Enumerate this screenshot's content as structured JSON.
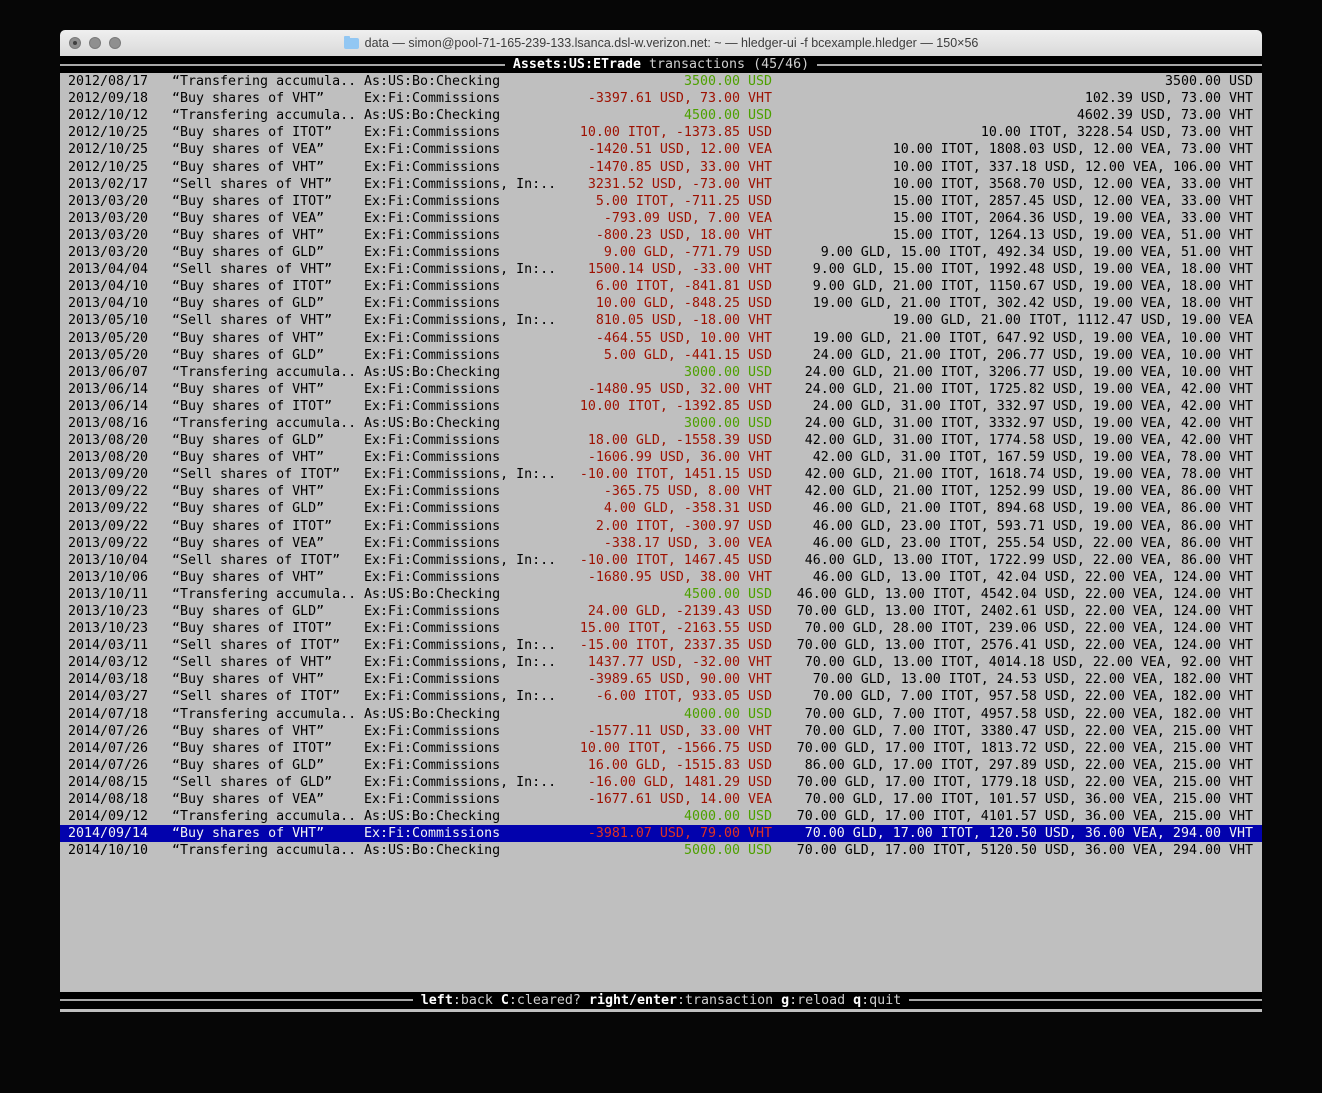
{
  "colors": {
    "terminal_bg": "#bfbfbf",
    "selection_bg": "#0202ad",
    "change_negative": "#9d1000",
    "change_positive": "#4da000",
    "selected_negative": "#e03323",
    "bar_bg": "#000000"
  },
  "window": {
    "title": "data — simon@pool-71-165-239-133.lsanca.dsl-w.verizon.net: ~ — hledger-ui -f bcexample.hledger — 150×56"
  },
  "header": {
    "account": "Assets:US:ETrade",
    "rest": "transactions (45/46)"
  },
  "footer": {
    "keys": [
      {
        "key": "left",
        "desc": ":back"
      },
      {
        "key": "C",
        "desc": ":cleared?"
      },
      {
        "key": "right/enter",
        "desc": ":transaction"
      },
      {
        "key": "g",
        "desc": ":reload"
      },
      {
        "key": "q",
        "desc": ":quit"
      }
    ]
  },
  "rows": [
    {
      "date": "2012/08/17",
      "desc": "“Transfering accumula..",
      "acct": "As:US:Bo:Checking",
      "chg": "3500.00 USD",
      "kind": "green",
      "bal": "3500.00 USD",
      "sel": false
    },
    {
      "date": "2012/09/18",
      "desc": "“Buy shares of VHT”",
      "acct": "Ex:Fi:Commissions",
      "chg": "-3397.61 USD, 73.00 VHT",
      "kind": "red",
      "bal": "102.39 USD, 73.00 VHT",
      "sel": false
    },
    {
      "date": "2012/10/12",
      "desc": "“Transfering accumula..",
      "acct": "As:US:Bo:Checking",
      "chg": "4500.00 USD",
      "kind": "green",
      "bal": "4602.39 USD, 73.00 VHT",
      "sel": false
    },
    {
      "date": "2012/10/25",
      "desc": "“Buy shares of ITOT”",
      "acct": "Ex:Fi:Commissions",
      "chg": "10.00 ITOT, -1373.85 USD",
      "kind": "red",
      "bal": "10.00 ITOT, 3228.54 USD, 73.00 VHT",
      "sel": false
    },
    {
      "date": "2012/10/25",
      "desc": "“Buy shares of VEA”",
      "acct": "Ex:Fi:Commissions",
      "chg": "-1420.51 USD, 12.00 VEA",
      "kind": "red",
      "bal": "10.00 ITOT, 1808.03 USD, 12.00 VEA, 73.00 VHT",
      "sel": false
    },
    {
      "date": "2012/10/25",
      "desc": "“Buy shares of VHT”",
      "acct": "Ex:Fi:Commissions",
      "chg": "-1470.85 USD, 33.00 VHT",
      "kind": "red",
      "bal": "10.00 ITOT, 337.18 USD, 12.00 VEA, 106.00 VHT",
      "sel": false
    },
    {
      "date": "2013/02/17",
      "desc": "“Sell shares of VHT”",
      "acct": "Ex:Fi:Commissions, In:..",
      "chg": "3231.52 USD, -73.00 VHT",
      "kind": "red",
      "bal": "10.00 ITOT, 3568.70 USD, 12.00 VEA, 33.00 VHT",
      "sel": false
    },
    {
      "date": "2013/03/20",
      "desc": "“Buy shares of ITOT”",
      "acct": "Ex:Fi:Commissions",
      "chg": "5.00 ITOT, -711.25 USD",
      "kind": "red",
      "bal": "15.00 ITOT, 2857.45 USD, 12.00 VEA, 33.00 VHT",
      "sel": false
    },
    {
      "date": "2013/03/20",
      "desc": "“Buy shares of VEA”",
      "acct": "Ex:Fi:Commissions",
      "chg": "-793.09 USD, 7.00 VEA",
      "kind": "red",
      "bal": "15.00 ITOT, 2064.36 USD, 19.00 VEA, 33.00 VHT",
      "sel": false
    },
    {
      "date": "2013/03/20",
      "desc": "“Buy shares of VHT”",
      "acct": "Ex:Fi:Commissions",
      "chg": "-800.23 USD, 18.00 VHT",
      "kind": "red",
      "bal": "15.00 ITOT, 1264.13 USD, 19.00 VEA, 51.00 VHT",
      "sel": false
    },
    {
      "date": "2013/03/20",
      "desc": "“Buy shares of GLD”",
      "acct": "Ex:Fi:Commissions",
      "chg": "9.00 GLD, -771.79 USD",
      "kind": "red",
      "bal": "9.00 GLD, 15.00 ITOT, 492.34 USD, 19.00 VEA, 51.00 VHT",
      "sel": false
    },
    {
      "date": "2013/04/04",
      "desc": "“Sell shares of VHT”",
      "acct": "Ex:Fi:Commissions, In:..",
      "chg": "1500.14 USD, -33.00 VHT",
      "kind": "red",
      "bal": "9.00 GLD, 15.00 ITOT, 1992.48 USD, 19.00 VEA, 18.00 VHT",
      "sel": false
    },
    {
      "date": "2013/04/10",
      "desc": "“Buy shares of ITOT”",
      "acct": "Ex:Fi:Commissions",
      "chg": "6.00 ITOT, -841.81 USD",
      "kind": "red",
      "bal": "9.00 GLD, 21.00 ITOT, 1150.67 USD, 19.00 VEA, 18.00 VHT",
      "sel": false
    },
    {
      "date": "2013/04/10",
      "desc": "“Buy shares of GLD”",
      "acct": "Ex:Fi:Commissions",
      "chg": "10.00 GLD, -848.25 USD",
      "kind": "red",
      "bal": "19.00 GLD, 21.00 ITOT, 302.42 USD, 19.00 VEA, 18.00 VHT",
      "sel": false
    },
    {
      "date": "2013/05/10",
      "desc": "“Sell shares of VHT”",
      "acct": "Ex:Fi:Commissions, In:..",
      "chg": "810.05 USD, -18.00 VHT",
      "kind": "red",
      "bal": "19.00 GLD, 21.00 ITOT, 1112.47 USD, 19.00 VEA",
      "sel": false
    },
    {
      "date": "2013/05/20",
      "desc": "“Buy shares of VHT”",
      "acct": "Ex:Fi:Commissions",
      "chg": "-464.55 USD, 10.00 VHT",
      "kind": "red",
      "bal": "19.00 GLD, 21.00 ITOT, 647.92 USD, 19.00 VEA, 10.00 VHT",
      "sel": false
    },
    {
      "date": "2013/05/20",
      "desc": "“Buy shares of GLD”",
      "acct": "Ex:Fi:Commissions",
      "chg": "5.00 GLD, -441.15 USD",
      "kind": "red",
      "bal": "24.00 GLD, 21.00 ITOT, 206.77 USD, 19.00 VEA, 10.00 VHT",
      "sel": false
    },
    {
      "date": "2013/06/07",
      "desc": "“Transfering accumula..",
      "acct": "As:US:Bo:Checking",
      "chg": "3000.00 USD",
      "kind": "green",
      "bal": "24.00 GLD, 21.00 ITOT, 3206.77 USD, 19.00 VEA, 10.00 VHT",
      "sel": false
    },
    {
      "date": "2013/06/14",
      "desc": "“Buy shares of VHT”",
      "acct": "Ex:Fi:Commissions",
      "chg": "-1480.95 USD, 32.00 VHT",
      "kind": "red",
      "bal": "24.00 GLD, 21.00 ITOT, 1725.82 USD, 19.00 VEA, 42.00 VHT",
      "sel": false
    },
    {
      "date": "2013/06/14",
      "desc": "“Buy shares of ITOT”",
      "acct": "Ex:Fi:Commissions",
      "chg": "10.00 ITOT, -1392.85 USD",
      "kind": "red",
      "bal": "24.00 GLD, 31.00 ITOT, 332.97 USD, 19.00 VEA, 42.00 VHT",
      "sel": false
    },
    {
      "date": "2013/08/16",
      "desc": "“Transfering accumula..",
      "acct": "As:US:Bo:Checking",
      "chg": "3000.00 USD",
      "kind": "green",
      "bal": "24.00 GLD, 31.00 ITOT, 3332.97 USD, 19.00 VEA, 42.00 VHT",
      "sel": false
    },
    {
      "date": "2013/08/20",
      "desc": "“Buy shares of GLD”",
      "acct": "Ex:Fi:Commissions",
      "chg": "18.00 GLD, -1558.39 USD",
      "kind": "red",
      "bal": "42.00 GLD, 31.00 ITOT, 1774.58 USD, 19.00 VEA, 42.00 VHT",
      "sel": false
    },
    {
      "date": "2013/08/20",
      "desc": "“Buy shares of VHT”",
      "acct": "Ex:Fi:Commissions",
      "chg": "-1606.99 USD, 36.00 VHT",
      "kind": "red",
      "bal": "42.00 GLD, 31.00 ITOT, 167.59 USD, 19.00 VEA, 78.00 VHT",
      "sel": false
    },
    {
      "date": "2013/09/20",
      "desc": "“Sell shares of ITOT”",
      "acct": "Ex:Fi:Commissions, In:..",
      "chg": "-10.00 ITOT, 1451.15 USD",
      "kind": "red",
      "bal": "42.00 GLD, 21.00 ITOT, 1618.74 USD, 19.00 VEA, 78.00 VHT",
      "sel": false
    },
    {
      "date": "2013/09/22",
      "desc": "“Buy shares of VHT”",
      "acct": "Ex:Fi:Commissions",
      "chg": "-365.75 USD, 8.00 VHT",
      "kind": "red",
      "bal": "42.00 GLD, 21.00 ITOT, 1252.99 USD, 19.00 VEA, 86.00 VHT",
      "sel": false
    },
    {
      "date": "2013/09/22",
      "desc": "“Buy shares of GLD”",
      "acct": "Ex:Fi:Commissions",
      "chg": "4.00 GLD, -358.31 USD",
      "kind": "red",
      "bal": "46.00 GLD, 21.00 ITOT, 894.68 USD, 19.00 VEA, 86.00 VHT",
      "sel": false
    },
    {
      "date": "2013/09/22",
      "desc": "“Buy shares of ITOT”",
      "acct": "Ex:Fi:Commissions",
      "chg": "2.00 ITOT, -300.97 USD",
      "kind": "red",
      "bal": "46.00 GLD, 23.00 ITOT, 593.71 USD, 19.00 VEA, 86.00 VHT",
      "sel": false
    },
    {
      "date": "2013/09/22",
      "desc": "“Buy shares of VEA”",
      "acct": "Ex:Fi:Commissions",
      "chg": "-338.17 USD, 3.00 VEA",
      "kind": "red",
      "bal": "46.00 GLD, 23.00 ITOT, 255.54 USD, 22.00 VEA, 86.00 VHT",
      "sel": false
    },
    {
      "date": "2013/10/04",
      "desc": "“Sell shares of ITOT”",
      "acct": "Ex:Fi:Commissions, In:..",
      "chg": "-10.00 ITOT, 1467.45 USD",
      "kind": "red",
      "bal": "46.00 GLD, 13.00 ITOT, 1722.99 USD, 22.00 VEA, 86.00 VHT",
      "sel": false
    },
    {
      "date": "2013/10/06",
      "desc": "“Buy shares of VHT”",
      "acct": "Ex:Fi:Commissions",
      "chg": "-1680.95 USD, 38.00 VHT",
      "kind": "red",
      "bal": "46.00 GLD, 13.00 ITOT, 42.04 USD, 22.00 VEA, 124.00 VHT",
      "sel": false
    },
    {
      "date": "2013/10/11",
      "desc": "“Transfering accumula..",
      "acct": "As:US:Bo:Checking",
      "chg": "4500.00 USD",
      "kind": "green",
      "bal": "46.00 GLD, 13.00 ITOT, 4542.04 USD, 22.00 VEA, 124.00 VHT",
      "sel": false
    },
    {
      "date": "2013/10/23",
      "desc": "“Buy shares of GLD”",
      "acct": "Ex:Fi:Commissions",
      "chg": "24.00 GLD, -2139.43 USD",
      "kind": "red",
      "bal": "70.00 GLD, 13.00 ITOT, 2402.61 USD, 22.00 VEA, 124.00 VHT",
      "sel": false
    },
    {
      "date": "2013/10/23",
      "desc": "“Buy shares of ITOT”",
      "acct": "Ex:Fi:Commissions",
      "chg": "15.00 ITOT, -2163.55 USD",
      "kind": "red",
      "bal": "70.00 GLD, 28.00 ITOT, 239.06 USD, 22.00 VEA, 124.00 VHT",
      "sel": false
    },
    {
      "date": "2014/03/11",
      "desc": "“Sell shares of ITOT”",
      "acct": "Ex:Fi:Commissions, In:..",
      "chg": "-15.00 ITOT, 2337.35 USD",
      "kind": "red",
      "bal": "70.00 GLD, 13.00 ITOT, 2576.41 USD, 22.00 VEA, 124.00 VHT",
      "sel": false
    },
    {
      "date": "2014/03/12",
      "desc": "“Sell shares of VHT”",
      "acct": "Ex:Fi:Commissions, In:..",
      "chg": "1437.77 USD, -32.00 VHT",
      "kind": "red",
      "bal": "70.00 GLD, 13.00 ITOT, 4014.18 USD, 22.00 VEA, 92.00 VHT",
      "sel": false
    },
    {
      "date": "2014/03/18",
      "desc": "“Buy shares of VHT”",
      "acct": "Ex:Fi:Commissions",
      "chg": "-3989.65 USD, 90.00 VHT",
      "kind": "red",
      "bal": "70.00 GLD, 13.00 ITOT, 24.53 USD, 22.00 VEA, 182.00 VHT",
      "sel": false
    },
    {
      "date": "2014/03/27",
      "desc": "“Sell shares of ITOT”",
      "acct": "Ex:Fi:Commissions, In:..",
      "chg": "-6.00 ITOT, 933.05 USD",
      "kind": "red",
      "bal": "70.00 GLD, 7.00 ITOT, 957.58 USD, 22.00 VEA, 182.00 VHT",
      "sel": false
    },
    {
      "date": "2014/07/18",
      "desc": "“Transfering accumula..",
      "acct": "As:US:Bo:Checking",
      "chg": "4000.00 USD",
      "kind": "green",
      "bal": "70.00 GLD, 7.00 ITOT, 4957.58 USD, 22.00 VEA, 182.00 VHT",
      "sel": false
    },
    {
      "date": "2014/07/26",
      "desc": "“Buy shares of VHT”",
      "acct": "Ex:Fi:Commissions",
      "chg": "-1577.11 USD, 33.00 VHT",
      "kind": "red",
      "bal": "70.00 GLD, 7.00 ITOT, 3380.47 USD, 22.00 VEA, 215.00 VHT",
      "sel": false
    },
    {
      "date": "2014/07/26",
      "desc": "“Buy shares of ITOT”",
      "acct": "Ex:Fi:Commissions",
      "chg": "10.00 ITOT, -1566.75 USD",
      "kind": "red",
      "bal": "70.00 GLD, 17.00 ITOT, 1813.72 USD, 22.00 VEA, 215.00 VHT",
      "sel": false
    },
    {
      "date": "2014/07/26",
      "desc": "“Buy shares of GLD”",
      "acct": "Ex:Fi:Commissions",
      "chg": "16.00 GLD, -1515.83 USD",
      "kind": "red",
      "bal": "86.00 GLD, 17.00 ITOT, 297.89 USD, 22.00 VEA, 215.00 VHT",
      "sel": false
    },
    {
      "date": "2014/08/15",
      "desc": "“Sell shares of GLD”",
      "acct": "Ex:Fi:Commissions, In:..",
      "chg": "-16.00 GLD, 1481.29 USD",
      "kind": "red",
      "bal": "70.00 GLD, 17.00 ITOT, 1779.18 USD, 22.00 VEA, 215.00 VHT",
      "sel": false
    },
    {
      "date": "2014/08/18",
      "desc": "“Buy shares of VEA”",
      "acct": "Ex:Fi:Commissions",
      "chg": "-1677.61 USD, 14.00 VEA",
      "kind": "red",
      "bal": "70.00 GLD, 17.00 ITOT, 101.57 USD, 36.00 VEA, 215.00 VHT",
      "sel": false
    },
    {
      "date": "2014/09/12",
      "desc": "“Transfering accumula..",
      "acct": "As:US:Bo:Checking",
      "chg": "4000.00 USD",
      "kind": "green",
      "bal": "70.00 GLD, 17.00 ITOT, 4101.57 USD, 36.00 VEA, 215.00 VHT",
      "sel": false
    },
    {
      "date": "2014/09/14",
      "desc": "“Buy shares of VHT”",
      "acct": "Ex:Fi:Commissions",
      "chg": "-3981.07 USD, 79.00 VHT",
      "kind": "red",
      "bal": "70.00 GLD, 17.00 ITOT, 120.50 USD, 36.00 VEA, 294.00 VHT",
      "sel": true
    },
    {
      "date": "2014/10/10",
      "desc": "“Transfering accumula..",
      "acct": "As:US:Bo:Checking",
      "chg": "5000.00 USD",
      "kind": "green",
      "bal": "70.00 GLD, 17.00 ITOT, 5120.50 USD, 36.00 VEA, 294.00 VHT",
      "sel": false
    }
  ]
}
